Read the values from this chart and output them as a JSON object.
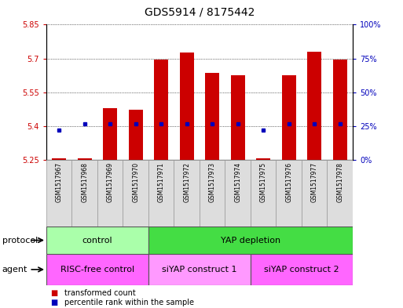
{
  "title": "GDS5914 / 8175442",
  "samples": [
    "GSM1517967",
    "GSM1517968",
    "GSM1517969",
    "GSM1517970",
    "GSM1517971",
    "GSM1517972",
    "GSM1517973",
    "GSM1517974",
    "GSM1517975",
    "GSM1517976",
    "GSM1517977",
    "GSM1517978"
  ],
  "transformed_count": [
    5.258,
    5.258,
    5.48,
    5.475,
    5.695,
    5.725,
    5.635,
    5.625,
    5.258,
    5.625,
    5.73,
    5.695
  ],
  "percentile_rank": [
    22,
    27,
    27,
    27,
    27,
    27,
    27,
    27,
    22,
    27,
    27,
    27
  ],
  "ylim_left": [
    5.25,
    5.85
  ],
  "ylim_right": [
    0,
    100
  ],
  "yticks_left": [
    5.25,
    5.4,
    5.55,
    5.7,
    5.85
  ],
  "ytick_labels_left": [
    "5.25",
    "5.4",
    "5.55",
    "5.7",
    "5.85"
  ],
  "yticks_right": [
    0,
    25,
    50,
    75,
    100
  ],
  "ytick_labels_right": [
    "0%",
    "25%",
    "50%",
    "75%",
    "100%"
  ],
  "bar_bottom": 5.25,
  "bar_color": "#cc0000",
  "dot_color": "#0000bb",
  "bar_width": 0.55,
  "protocol_groups": [
    {
      "label": "control",
      "start": 0,
      "end": 3,
      "color": "#aaffaa"
    },
    {
      "label": "YAP depletion",
      "start": 4,
      "end": 11,
      "color": "#44dd44"
    }
  ],
  "agent_groups": [
    {
      "label": "RISC-free control",
      "start": 0,
      "end": 3,
      "color": "#ff66ff"
    },
    {
      "label": "siYAP construct 1",
      "start": 4,
      "end": 7,
      "color": "#ff99ff"
    },
    {
      "label": "siYAP construct 2",
      "start": 8,
      "end": 11,
      "color": "#ff66ff"
    }
  ],
  "legend_items": [
    {
      "label": "transformed count",
      "color": "#cc0000"
    },
    {
      "label": "percentile rank within the sample",
      "color": "#0000bb"
    }
  ],
  "protocol_label": "protocol",
  "agent_label": "agent",
  "axis_color_left": "#cc0000",
  "axis_color_right": "#0000bb",
  "title_fontsize": 10,
  "tick_fontsize": 7,
  "annot_fontsize": 8,
  "sample_fontsize": 5.5
}
